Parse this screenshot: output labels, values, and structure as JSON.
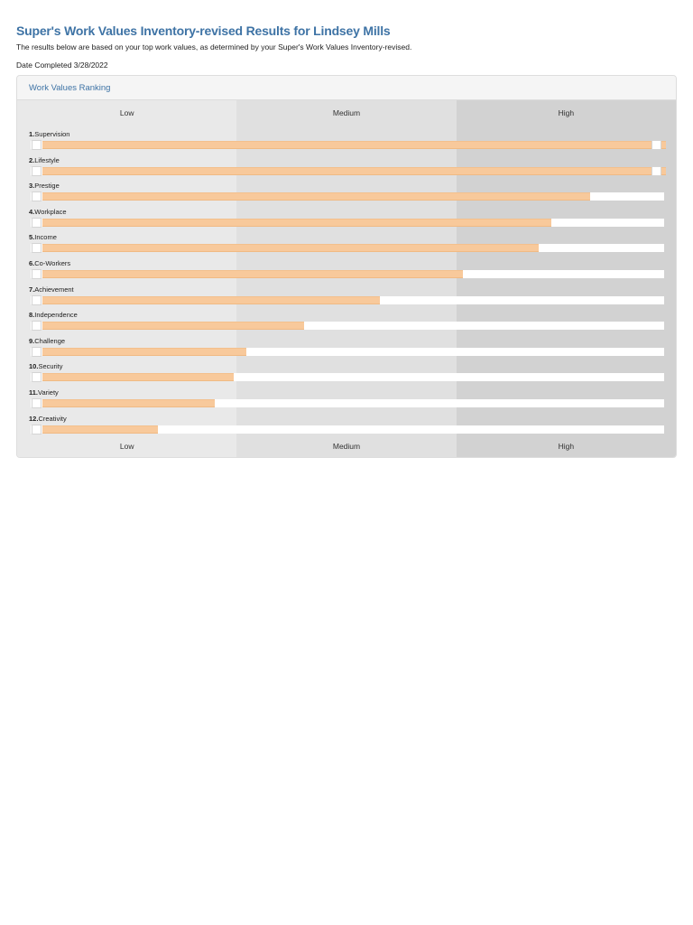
{
  "page": {
    "title": "Super's Work Values Inventory-revised Results for Lindsey Mills",
    "subtitle": "The results below are based on your top work values, as determined by your Super's Work Values Inventory-revised.",
    "date_completed": "Date Completed 3/28/2022"
  },
  "panel": {
    "header": "Work Values Ranking"
  },
  "chart_data": {
    "type": "bar",
    "orientation": "horizontal",
    "title": "Work Values Ranking",
    "bands": [
      "Low",
      "Medium",
      "High"
    ],
    "band_boundaries_pct": [
      0,
      33.3,
      66.7,
      100
    ],
    "categories": [
      "1.Supervision",
      "2.Lifestyle",
      "3.Prestige",
      "4.Workplace",
      "5.Income",
      "6.Co-Workers",
      "7.Achievement",
      "8.Independence",
      "9.Challenge",
      "10.Security",
      "11.Variety",
      "12.Creativity"
    ],
    "values": [
      100,
      100,
      88,
      82,
      80,
      68,
      55,
      43,
      34,
      32,
      29,
      20
    ],
    "value_scale": {
      "min": 0,
      "max": 100,
      "unit": "percent-of-scale"
    },
    "legend": "none",
    "grid": "off",
    "axis_repeated_top_and_bottom": true
  },
  "colors": {
    "accent_blue": "#3e73a5",
    "bar_fill": "#f8c99b",
    "bar_track": "#ffffff",
    "column_low_bg": "#e9e9e9",
    "column_medium_bg": "#e0e0e0",
    "column_high_bg": "#d2d2d2",
    "panel_bg": "#f5f5f5",
    "panel_border": "#dddddd",
    "body_text": "#2b2b2b"
  }
}
